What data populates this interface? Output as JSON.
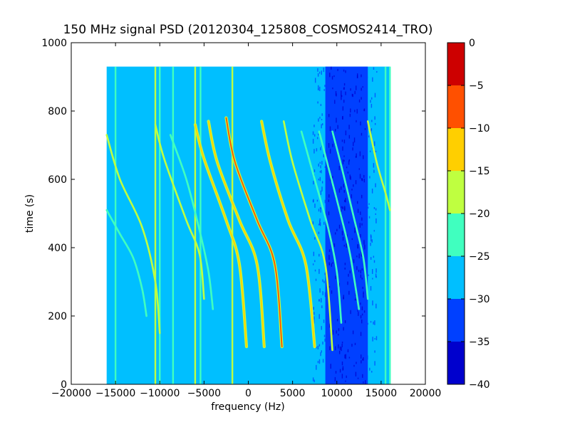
{
  "chart_data": {
    "type": "heatmap",
    "title": "150 MHz signal PSD (20120304_125808_COSMOS2414_TRO)",
    "xlabel": "frequency (Hz)",
    "ylabel": "time (s)",
    "xlim": [
      -20000,
      20000
    ],
    "ylim": [
      0,
      1000
    ],
    "x_ticks": [
      -20000,
      -15000,
      -10000,
      -5000,
      0,
      5000,
      10000,
      15000,
      20000
    ],
    "y_ticks": [
      0,
      200,
      400,
      600,
      800,
      1000
    ],
    "data_extent": {
      "x": [
        -16000,
        16000
      ],
      "y": [
        0,
        930
      ]
    },
    "grid": false,
    "colorbar": {
      "levels": [
        -40,
        -35,
        -30,
        -25,
        -20,
        -15,
        -10,
        -5,
        0
      ],
      "ticks": [
        0,
        -5,
        -10,
        -15,
        -20,
        -25,
        -30,
        -35,
        -40
      ],
      "colors": [
        "#0000cd",
        "#0040ff",
        "#00bfff",
        "#40ffbf",
        "#bfff40",
        "#ffcf00",
        "#ff5000",
        "#cd0000"
      ]
    },
    "background_level": -27.5,
    "low_noise_band": {
      "x": [
        8700,
        13500
      ],
      "level": -32.5
    },
    "constant_lines": [
      {
        "x": -15000,
        "level": -22.5
      },
      {
        "x": -10500,
        "level": -17.5
      },
      {
        "x": -10000,
        "level": -22.5
      },
      {
        "x": -8500,
        "level": -22.5
      },
      {
        "x": -6000,
        "level": -17.5
      },
      {
        "x": -5400,
        "level": -22.5
      },
      {
        "x": -1800,
        "level": -17.5
      },
      {
        "x": 15500,
        "level": -22.5
      },
      {
        "x": 16000,
        "level": -22.5
      }
    ],
    "drift_tracks": [
      {
        "points": [
          [
            -16000,
            730
          ],
          [
            -14500,
            600
          ],
          [
            -12000,
            460
          ],
          [
            -10500,
            300
          ],
          [
            -10000,
            150
          ]
        ],
        "level": -17.5
      },
      {
        "points": [
          [
            -16000,
            510
          ],
          [
            -14500,
            440
          ],
          [
            -13000,
            370
          ],
          [
            -12000,
            280
          ],
          [
            -11500,
            200
          ]
        ],
        "level": -22.5
      },
      {
        "points": [
          [
            -10500,
            760
          ],
          [
            -9500,
            660
          ],
          [
            -7000,
            480
          ],
          [
            -5500,
            380
          ],
          [
            -5000,
            250
          ]
        ],
        "level": -17.5
      },
      {
        "points": [
          [
            -8800,
            730
          ],
          [
            -7000,
            600
          ],
          [
            -5500,
            450
          ],
          [
            -4500,
            330
          ],
          [
            -4000,
            220
          ]
        ],
        "level": -22.5
      },
      {
        "points": [
          [
            -6000,
            760
          ],
          [
            -5000,
            660
          ],
          [
            -2500,
            480
          ],
          [
            -1000,
            350
          ],
          [
            -200,
            110
          ]
        ],
        "level": -12.5
      },
      {
        "points": [
          [
            -4500,
            770
          ],
          [
            -3500,
            650
          ],
          [
            -1000,
            480
          ],
          [
            1000,
            350
          ],
          [
            1800,
            110
          ]
        ],
        "level": -12.5
      },
      {
        "points": [
          [
            -2500,
            780
          ],
          [
            -1500,
            650
          ],
          [
            1000,
            480
          ],
          [
            3000,
            350
          ],
          [
            3800,
            110
          ]
        ],
        "level": -7.5
      },
      {
        "points": [
          [
            1500,
            770
          ],
          [
            2500,
            650
          ],
          [
            4500,
            480
          ],
          [
            6500,
            350
          ],
          [
            7500,
            110
          ]
        ],
        "level": -12.5
      },
      {
        "points": [
          [
            4000,
            770
          ],
          [
            5000,
            650
          ],
          [
            7000,
            480
          ],
          [
            8700,
            350
          ],
          [
            9500,
            100
          ]
        ],
        "level": -17.5
      },
      {
        "points": [
          [
            6000,
            740
          ],
          [
            7500,
            600
          ],
          [
            9000,
            460
          ],
          [
            10000,
            330
          ],
          [
            10500,
            180
          ]
        ],
        "level": -22.5
      },
      {
        "points": [
          [
            8000,
            740
          ],
          [
            9000,
            640
          ],
          [
            10500,
            490
          ],
          [
            11500,
            380
          ],
          [
            12500,
            220
          ]
        ],
        "level": -22.5
      },
      {
        "points": [
          [
            9500,
            740
          ],
          [
            10500,
            640
          ],
          [
            12000,
            480
          ],
          [
            13000,
            370
          ],
          [
            13500,
            250
          ]
        ],
        "level": -22.5
      },
      {
        "points": [
          [
            13500,
            770
          ],
          [
            14500,
            650
          ],
          [
            15500,
            560
          ],
          [
            16000,
            510
          ]
        ],
        "level": -17.5
      }
    ]
  }
}
